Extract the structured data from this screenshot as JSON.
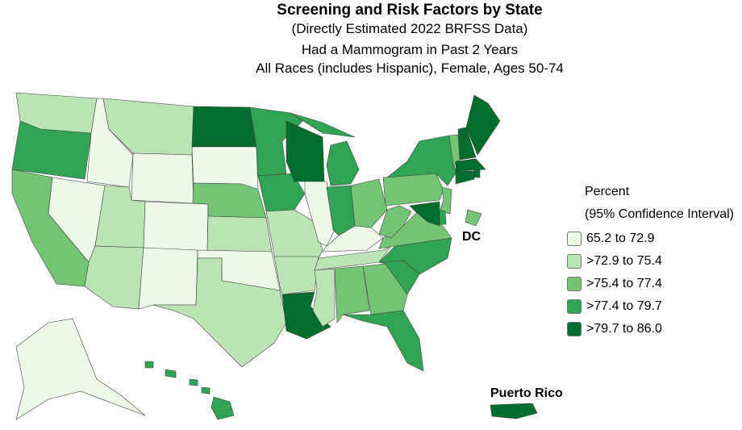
{
  "title": "Screening and Risk Factors by State",
  "subtitle": "(Directly Estimated 2022 BRFSS Data)",
  "measure": "Had a Mammogram in Past 2 Years",
  "population": "All Races (includes Hispanic), Female, Ages 50-74",
  "labels": {
    "dc": "DC",
    "pr": "Puerto Rico"
  },
  "legend": {
    "title": "Percent",
    "subtitle": "(95% Confidence Interval)",
    "classes": [
      {
        "label": "65.2 to 72.9",
        "color": "#edf8e9"
      },
      {
        "label": ">72.9 to 75.4",
        "color": "#bae4b3"
      },
      {
        "label": ">75.4 to 77.4",
        "color": "#74c476"
      },
      {
        "label": ">77.4 to 79.7",
        "color": "#31a354"
      },
      {
        "label": ">79.7 to 86.0",
        "color": "#006d2c"
      }
    ]
  },
  "states": {
    "WA": 2,
    "OR": 4,
    "CA": 3,
    "NV": 1,
    "ID": 1,
    "MT": 2,
    "WY": 1,
    "UT": 2,
    "CO": 1,
    "AZ": 2,
    "NM": 1,
    "ND": 5,
    "SD": 1,
    "NE": 3,
    "KS": 2,
    "OK": 1,
    "TX": 2,
    "MN": 4,
    "IA": 4,
    "MO": 2,
    "AR": 2,
    "LA": 5,
    "WI": 5,
    "IL": 1,
    "MI": 4,
    "IN": 4,
    "OH": 3,
    "KY": 1,
    "TN": 2,
    "MS": 2,
    "AL": 3,
    "GA": 3,
    "FL": 4,
    "SC": 4,
    "NC": 4,
    "VA": 3,
    "WV": 3,
    "PA": 3,
    "NY": 4,
    "VT": 3,
    "NH": 5,
    "ME": 5,
    "MA": 5,
    "RI": 5,
    "CT": 5,
    "NJ": 3,
    "DE": 4,
    "MD": 5,
    "DC": 3,
    "AK": 1,
    "HI": 4,
    "PR": 5
  }
}
